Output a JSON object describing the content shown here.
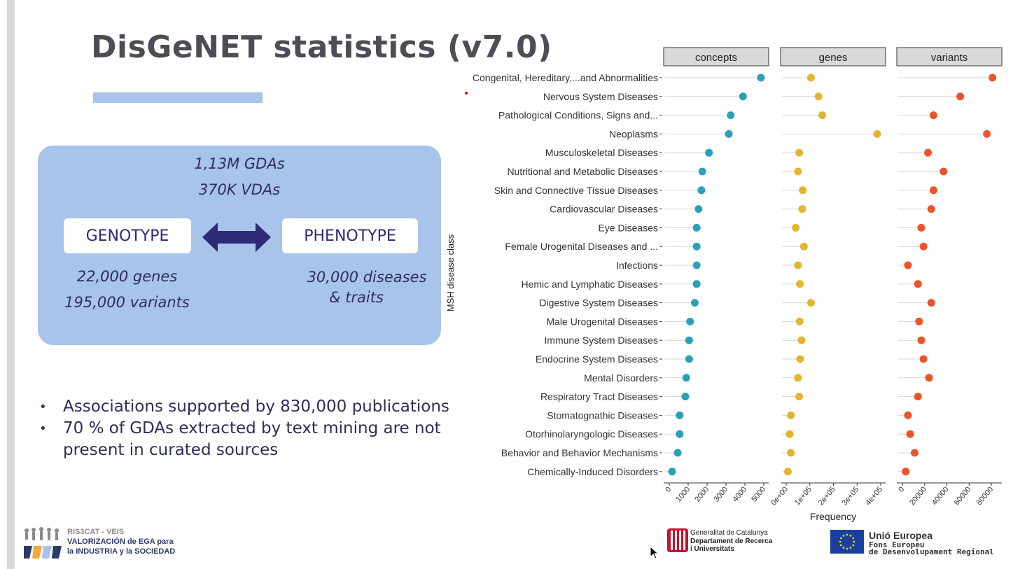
{
  "slide": {
    "title": "DisGeNET statistics (v7.0)"
  },
  "summary": {
    "gdas": "1,13M GDAs",
    "vdas": "370K VDAs",
    "genotype": "GENOTYPE",
    "phenotype": "PHENOTYPE",
    "genes": "22,000 genes",
    "variants": "195,000 variants",
    "diseases": "30,000 diseases",
    "traits": "& traits"
  },
  "bullets": [
    "Associations supported by 830,000 publications",
    "70 % of GDAs extracted by text mining are not present in curated sources"
  ],
  "footer": {
    "ris3cat": "RIS3CAT - VEIS",
    "line1": "VALORIZACIÓN de EGA para",
    "line2": "la INDUSTRIA y la SOCIEDAD",
    "gencat1": "Generalitat de Catalunya",
    "gencat2": "Departament de Recerca",
    "gencat3": "i Universitats",
    "ue1": "Unió Europea",
    "ue2": "Fons Europeu",
    "ue3": "de Desenvolupament Regional"
  },
  "chart_data": {
    "type": "lollipop",
    "ylabel": "MSH disease class",
    "xlabel": "Frequency",
    "categories": [
      "Congenital, Hereditary,...and Abnormalities",
      "Nervous System Diseases",
      "Pathological Conditions, Signs and...",
      "Neoplasms",
      "Musculoskeletal Diseases",
      "Nutritional and Metabolic Diseases",
      "Skin and Connective Tissue Diseases",
      "Cardiovascular Diseases",
      "Eye Diseases",
      "Female Urogenital Diseases and ...",
      "Infections",
      "Hemic and Lymphatic Diseases",
      "Digestive System Diseases",
      "Male Urogenital Diseases",
      "Immune System Diseases",
      "Endocrine System Diseases",
      "Mental Disorders",
      "Respiratory Tract Diseases",
      "Stomatognathic Diseases",
      "Otorhinolaryngologic Diseases",
      "Behavior and Behavior Mechanisms",
      "Chemically-Induced Disorders"
    ],
    "panels": [
      {
        "name": "concepts",
        "color": "#2aa1b8",
        "xlim": [
          0,
          5000
        ],
        "ticks": [
          0,
          1000,
          2000,
          3000,
          4000,
          5000
        ],
        "tick_labels": [
          "0",
          "1000",
          "2000",
          "3000",
          "4000",
          "5000"
        ],
        "values": [
          4850,
          3900,
          3250,
          3150,
          2100,
          1750,
          1700,
          1550,
          1450,
          1450,
          1450,
          1450,
          1350,
          1100,
          1050,
          1050,
          900,
          850,
          550,
          550,
          450,
          150
        ]
      },
      {
        "name": "genes",
        "color": "#e3b52c",
        "xlim": [
          0,
          400000
        ],
        "ticks": [
          0,
          100000,
          200000,
          300000,
          400000
        ],
        "tick_labels": [
          "0e+00",
          "1e+05",
          "2e+05",
          "3e+05",
          "4e+05"
        ],
        "values": [
          105000,
          137000,
          153000,
          385000,
          55000,
          50000,
          70000,
          68000,
          40000,
          75000,
          50000,
          58000,
          105000,
          57000,
          65000,
          59000,
          50000,
          55000,
          20000,
          15000,
          20000,
          7000
        ]
      },
      {
        "name": "variants",
        "color": "#ea5528",
        "xlim": [
          0,
          85000
        ],
        "ticks": [
          0,
          20000,
          40000,
          60000,
          80000
        ],
        "tick_labels": [
          "0",
          "20000",
          "40000",
          "60000",
          "80000"
        ],
        "values": [
          81000,
          52000,
          28000,
          76000,
          23000,
          37000,
          28000,
          26000,
          17000,
          19000,
          5000,
          14000,
          26000,
          15000,
          17000,
          19000,
          24000,
          14000,
          5000,
          7000,
          11000,
          3000
        ]
      }
    ]
  }
}
